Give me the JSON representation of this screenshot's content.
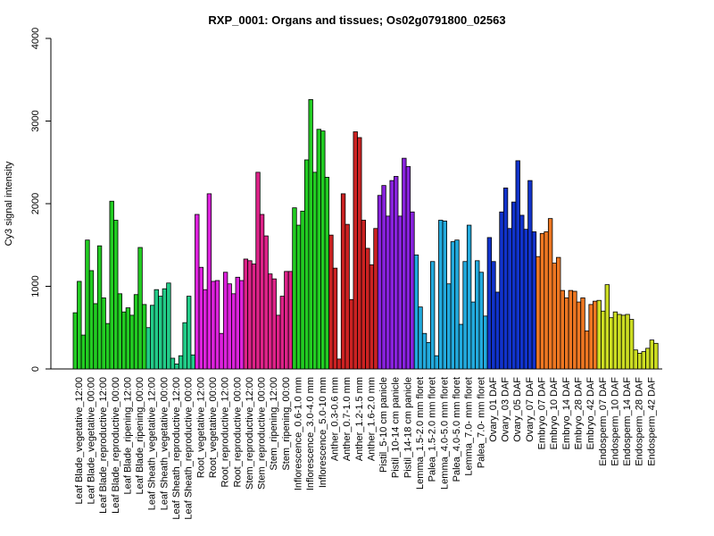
{
  "chart_data": {
    "type": "bar",
    "title": "RXP_0001: Organs and tissues; Os02g0791800_02563",
    "ylabel": "Cy3 signal intensity",
    "xlabel": "",
    "ylim": [
      0,
      4000
    ],
    "yticks": [
      0,
      1000,
      2000,
      3000,
      4000
    ],
    "grid": false,
    "groups": [
      {
        "label": "Leaf Blade_vegetative_12:00",
        "color": "#22cc22",
        "values": [
          680,
          1060,
          410
        ]
      },
      {
        "label": "Leaf Blade_vegetative_00:00",
        "color": "#22cc22",
        "values": [
          1560,
          1190,
          790
        ]
      },
      {
        "label": "Leaf Blade_reproductive_12:00",
        "color": "#22cc22",
        "values": [
          1490,
          860,
          550
        ]
      },
      {
        "label": "Leaf Blade_reproductive_00:00",
        "color": "#22cc22",
        "values": [
          2030,
          1800,
          910
        ]
      },
      {
        "label": "Leaf Blade_ripening_12:00",
        "color": "#22cc22",
        "values": [
          690,
          740,
          650
        ]
      },
      {
        "label": "Leaf Blade_ripening_00:00",
        "color": "#22cc22",
        "values": [
          900,
          1470,
          780
        ]
      },
      {
        "label": "Leaf Sheath_vegetative_12:00",
        "color": "#22cc88",
        "values": [
          500,
          770,
          960
        ]
      },
      {
        "label": "Leaf Sheath_vegetative_00:00",
        "color": "#22cc88",
        "values": [
          880,
          970,
          1040
        ]
      },
      {
        "label": "Leaf Sheath_reproductive_12:00",
        "color": "#22cc88",
        "values": [
          130,
          60,
          160
        ]
      },
      {
        "label": "Leaf Sheath_reproductive_00:00",
        "color": "#22cc88",
        "values": [
          560,
          880,
          170
        ]
      },
      {
        "label": "Root_vegetative_12:00",
        "color": "#dd22dd",
        "values": [
          1870,
          1230,
          960
        ]
      },
      {
        "label": "Root_vegetative_00:00",
        "color": "#dd22dd",
        "values": [
          2120,
          1060,
          1070
        ]
      },
      {
        "label": "Root_reproductive_12:00",
        "color": "#dd22dd",
        "values": [
          430,
          1170,
          1030
        ]
      },
      {
        "label": "Root_reproductive_00:00",
        "color": "#dd22dd",
        "values": [
          910,
          1110,
          1070
        ]
      },
      {
        "label": "Stem_reproductive_12:00",
        "color": "#dd2288",
        "values": [
          1330,
          1310,
          1270
        ]
      },
      {
        "label": "Stem_reproductive_00:00",
        "color": "#dd2288",
        "values": [
          2380,
          1870,
          1610
        ]
      },
      {
        "label": "Stem_ripening_12:00",
        "color": "#dd2288",
        "values": [
          1150,
          1090,
          650
        ]
      },
      {
        "label": "Stem_ripening_00:00",
        "color": "#dd2288",
        "values": [
          880,
          1180,
          1180
        ]
      },
      {
        "label": "Inflorescence_0.6-1.0 mm",
        "color": "#22cc22",
        "values": [
          1950,
          1740,
          1910
        ]
      },
      {
        "label": "Inflorescence_3.0-4.0 mm",
        "color": "#22cc22",
        "values": [
          2530,
          3260,
          2380
        ]
      },
      {
        "label": "Inflorescence_5.0-10 mm",
        "color": "#22cc22",
        "values": [
          2900,
          2880,
          2320
        ]
      },
      {
        "label": "Anther_0.3-0.6 mm",
        "color": "#cc2222",
        "values": [
          1620,
          1220,
          120
        ]
      },
      {
        "label": "Anther_0.7-1.0 mm",
        "color": "#cc2222",
        "values": [
          2120,
          1750,
          840
        ]
      },
      {
        "label": "Anther_1.2-1.5 mm",
        "color": "#cc2222",
        "values": [
          2870,
          2800,
          1800
        ]
      },
      {
        "label": "Anther_1.6-2.0 mm",
        "color": "#cc2222",
        "values": [
          1460,
          1260,
          1700
        ]
      },
      {
        "label": "Pistil_5-10 cm panicle",
        "color": "#8822dd",
        "values": [
          2100,
          2220,
          1850
        ]
      },
      {
        "label": "Pistil_10-14 cm panicle",
        "color": "#8822dd",
        "values": [
          2280,
          2330,
          1850
        ]
      },
      {
        "label": "Pistil_14-18 cm panicle",
        "color": "#8822dd",
        "values": [
          2550,
          2450,
          1900
        ]
      },
      {
        "label": "Lemma_1.5-2.0 mm floret",
        "color": "#22aadd",
        "values": [
          1380,
          750,
          430
        ]
      },
      {
        "label": "Palea_1.5-2.0 mm floret",
        "color": "#22aadd",
        "values": [
          320,
          1300,
          160
        ]
      },
      {
        "label": "Lemma_4.0-5.0 mm floret",
        "color": "#22aadd",
        "values": [
          1800,
          1790,
          1030
        ]
      },
      {
        "label": "Palea_4.0-5.0 mm floret",
        "color": "#22aadd",
        "values": [
          1540,
          1560,
          540
        ]
      },
      {
        "label": "Lemma_7.0- mm floret",
        "color": "#22aadd",
        "values": [
          1300,
          1740,
          810
        ]
      },
      {
        "label": "Palea_7.0- mm floret",
        "color": "#22aadd",
        "values": [
          1310,
          1170,
          640
        ]
      },
      {
        "label": "Ovary_01 DAF",
        "color": "#1133cc",
        "values": [
          1590,
          1300,
          930
        ]
      },
      {
        "label": "Ovary_03 DAF",
        "color": "#1133cc",
        "values": [
          1900,
          2190,
          1700
        ]
      },
      {
        "label": "Ovary_05 DAF",
        "color": "#1133cc",
        "values": [
          2020,
          2520,
          1860
        ]
      },
      {
        "label": "Ovary_07 DAF",
        "color": "#1133cc",
        "values": [
          1690,
          2280,
          1660
        ]
      },
      {
        "label": "Embryo_07 DAF",
        "color": "#ee7722",
        "values": [
          1360,
          1640,
          1660
        ]
      },
      {
        "label": "Embryo_10 DAF",
        "color": "#ee7722",
        "values": [
          1820,
          1280,
          1350
        ]
      },
      {
        "label": "Embryo_14 DAF",
        "color": "#ee7722",
        "values": [
          950,
          860,
          950
        ]
      },
      {
        "label": "Embryo_28 DAF",
        "color": "#ee7722",
        "values": [
          940,
          810,
          860
        ]
      },
      {
        "label": "Embryo_42 DAF",
        "color": "#ee7722",
        "values": [
          460,
          780,
          820
        ]
      },
      {
        "label": "Endosperm_07 DAF",
        "color": "#ccdd22",
        "values": [
          830,
          700,
          1020
        ]
      },
      {
        "label": "Endosperm_10 DAF",
        "color": "#ccdd22",
        "values": [
          620,
          690,
          660
        ]
      },
      {
        "label": "Endosperm_14 DAF",
        "color": "#ccdd22",
        "values": [
          650,
          660,
          600
        ]
      },
      {
        "label": "Endosperm_28 DAF",
        "color": "#ccdd22",
        "values": [
          230,
          190,
          210
        ]
      },
      {
        "label": "Endosperm_42 DAF",
        "color": "#ccdd22",
        "values": [
          250,
          350,
          310
        ]
      }
    ]
  }
}
